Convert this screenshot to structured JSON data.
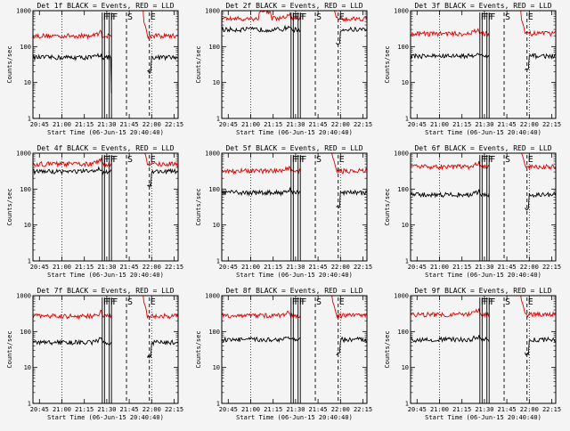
{
  "chart_data": {
    "type": "line",
    "xlabel": "Start Time (06-Jun-15 20:40:40)",
    "ylabel": "Counts/sec",
    "yscale": "log",
    "ylim": [
      1,
      1000
    ],
    "yticks": [
      1,
      10,
      100,
      1000
    ],
    "ytick_labels": [
      "1",
      "10",
      "100",
      "1000"
    ],
    "xlim_minutes": [
      0,
      97
    ],
    "xticks_minutes": [
      4.33,
      19.33,
      34.33,
      49.33,
      64.33,
      79.33,
      94.33
    ],
    "xtick_labels": [
      "20:45",
      "21:00",
      "21:15",
      "21:30",
      "21:45",
      "22:00",
      "22:15"
    ],
    "markers": [
      {
        "label": "F",
        "minute": 46.3,
        "style": "solid"
      },
      {
        "label": "F",
        "minute": 47.8,
        "style": "solid"
      },
      {
        "label": "F",
        "minute": 51.0,
        "style": "solid"
      },
      {
        "label": "F",
        "minute": 52.5,
        "style": "solid"
      },
      {
        "label": "S",
        "minute": 62.5,
        "style": "dashed"
      },
      {
        "label": "E",
        "minute": 77.8,
        "style": "dashed"
      }
    ],
    "series_names": [
      "BLACK = Events",
      "RED = LLD"
    ],
    "series_colors": {
      "events": "#000000",
      "lld": "#e00000"
    },
    "panels": [
      {
        "title": "Det 1f BLACK = Events, RED = LLD",
        "events_level": 50,
        "lld_level": 200,
        "saa_drop": true,
        "lld_bump": false
      },
      {
        "title": "Det 2f BLACK = Events, RED = LLD",
        "events_level": 300,
        "lld_level": 600,
        "saa_drop": false,
        "lld_bump": true
      },
      {
        "title": "Det 3f BLACK = Events, RED = LLD",
        "events_level": 55,
        "lld_level": 230,
        "saa_drop": false,
        "lld_bump": false
      },
      {
        "title": "Det 4f BLACK = Events, RED = LLD",
        "events_level": 310,
        "lld_level": 500,
        "saa_drop": false,
        "lld_bump": false
      },
      {
        "title": "Det 5f BLACK = Events, RED = LLD",
        "events_level": 80,
        "lld_level": 320,
        "saa_drop": false,
        "lld_bump": false
      },
      {
        "title": "Det 6f BLACK = Events, RED = LLD",
        "events_level": 70,
        "lld_level": 420,
        "saa_drop": false,
        "lld_bump": false
      },
      {
        "title": "Det 7f BLACK = Events, RED = LLD",
        "events_level": 50,
        "lld_level": 270,
        "saa_drop": false,
        "lld_bump": false
      },
      {
        "title": "Det 8f BLACK = Events, RED = LLD",
        "events_level": 60,
        "lld_level": 280,
        "saa_drop": false,
        "lld_bump": false
      },
      {
        "title": "Det 9f BLACK = Events, RED = LLD",
        "events_level": 60,
        "lld_level": 300,
        "saa_drop": false,
        "lld_bump": false
      }
    ]
  }
}
